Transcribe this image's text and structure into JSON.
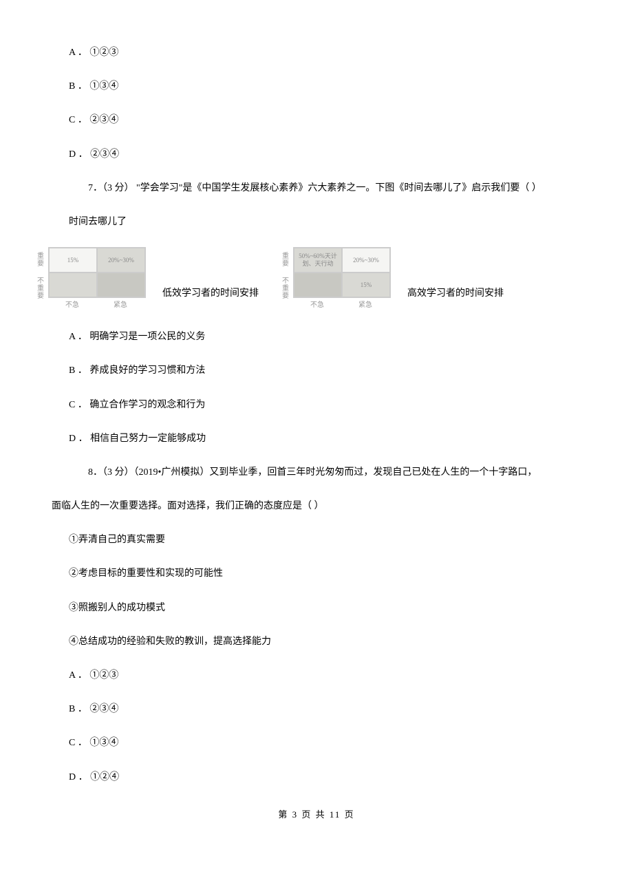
{
  "q6": {
    "options": {
      "a": "A ． ①②③",
      "b": "B ． ①③④",
      "c": "C ． ②③④",
      "d": "D ． ②③④"
    }
  },
  "q7": {
    "stem": "7．（3 分）  \"学会学习\"是《中国学生发展核心素养》六大素养之一。下图《时间去哪儿了》启示我们要（    ）",
    "subtitle": "时间去哪儿了",
    "matrix_axis": {
      "y_top": "重要",
      "y_bottom": "不重要",
      "x_left": "不急",
      "x_right": "紧急"
    },
    "matrix_low": {
      "cells": [
        "15%",
        "20%~30%",
        "",
        ""
      ],
      "bg": [
        "bg-light",
        "bg-med",
        "bg-med",
        "bg-dark"
      ],
      "caption": "低效学习者的时间安排"
    },
    "matrix_high": {
      "cells": [
        "50%~60%天计划、天行动",
        "20%~30%",
        "",
        "15%"
      ],
      "bg": [
        "bg-med",
        "bg-light",
        "bg-dark",
        "bg-med"
      ],
      "caption": "高效学习者的时间安排"
    },
    "options": {
      "a": "A ． 明确学习是一项公民的义务",
      "b": "B ． 养成良好的学习习惯和方法",
      "c": "C ． 确立合作学习的观念和行为",
      "d": "D ． 相信自己努力一定能够成功"
    }
  },
  "q8": {
    "stem": "8．（3 分）（2019•广州模拟）又到毕业季，回首三年时光匆匆而过，发现自己已处在人生的一个十字路口，",
    "stem2": "面临人生的一次重要选择。面对选择，我们正确的态度应是（    ）",
    "statements": {
      "s1": "①弄清自己的真实需要",
      "s2": "②考虑目标的重要性和实现的可能性",
      "s3": "③照搬别人的成功模式",
      "s4": "④总结成功的经验和失败的教训，提高选择能力"
    },
    "options": {
      "a": "A ． ①②③",
      "b": "B ． ②③④",
      "c": "C ． ①③④",
      "d": "D ． ①②④"
    }
  },
  "footer": "第 3 页 共 11 页"
}
